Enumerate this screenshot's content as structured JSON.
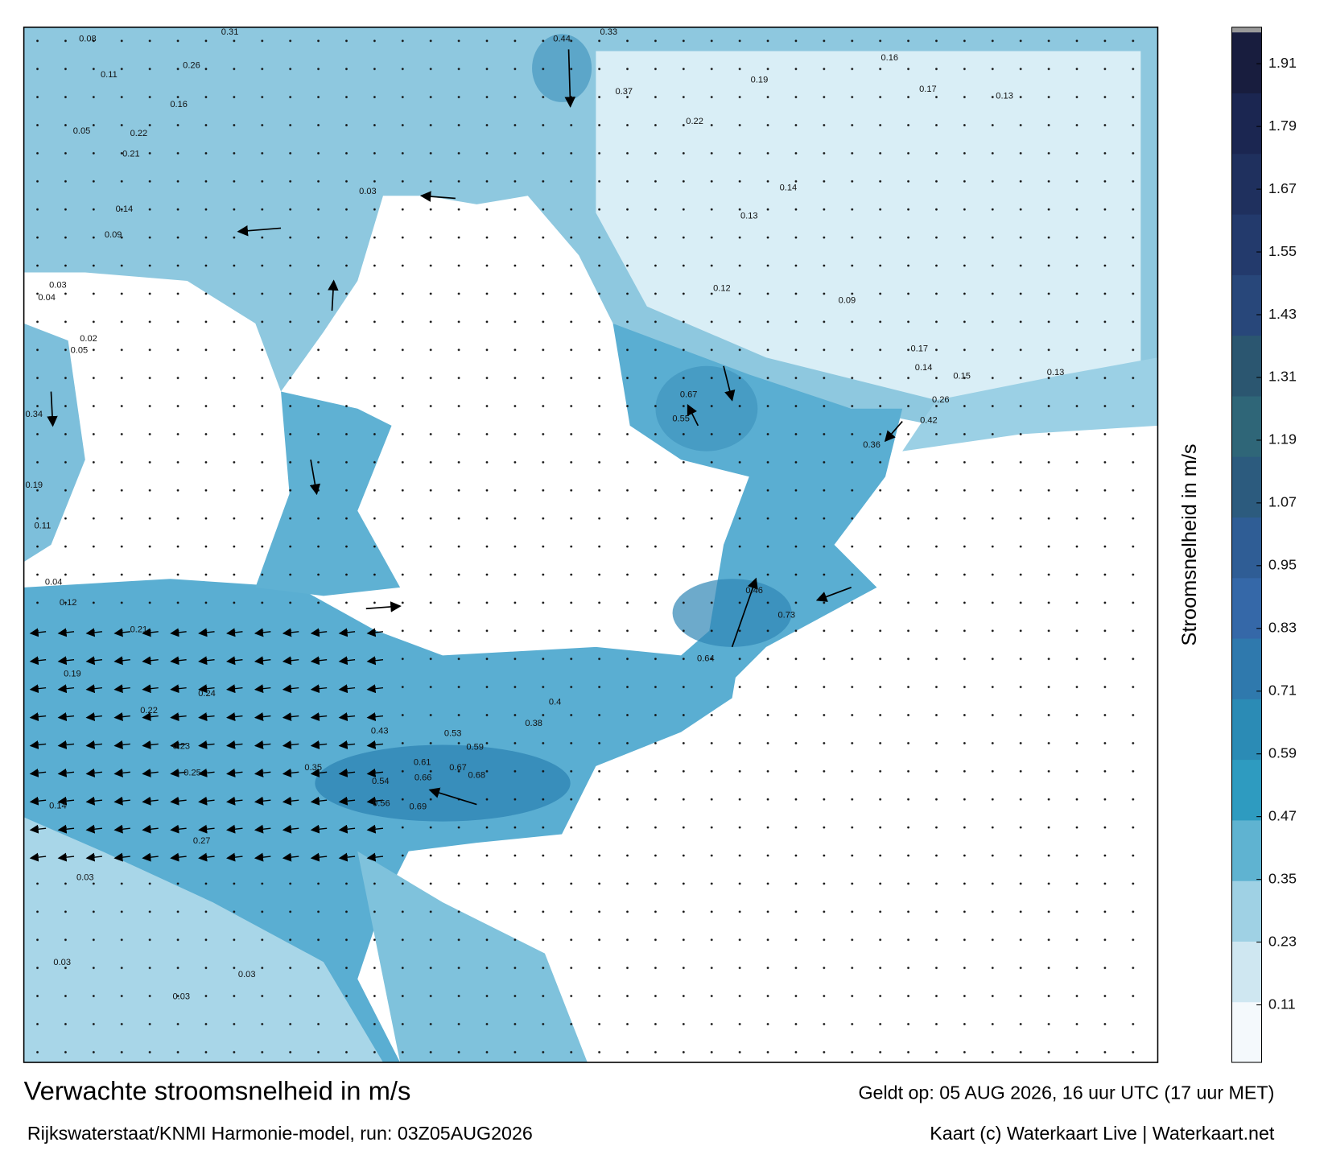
{
  "header": {
    "title": "Verwachte stroomsnelheid in m/s",
    "model": "Rijkswaterstaat/KNMI Harmonie-model, run: 03Z05AUG2026",
    "valid": "Geldt op: 05 AUG 2026, 16 uur UTC (17 uur MET)",
    "credit": "Kaart (c) Waterkaart Live | Waterkaart.net"
  },
  "colorbar": {
    "label": "Stroomsnelheid in m/s",
    "lim": [
      0,
      1.97
    ],
    "ticks": [
      0.11,
      0.23,
      0.35,
      0.47,
      0.59,
      0.71,
      0.83,
      0.95,
      1.07,
      1.19,
      1.31,
      1.43,
      1.55,
      1.67,
      1.79,
      1.91
    ],
    "colors": [
      "#f4f9fc",
      "#cfe7f1",
      "#9fd1e4",
      "#5fb3d1",
      "#2e9bc0",
      "#2b8bb5",
      "#2f79ad",
      "#3568a8",
      "#2f5d95",
      "#2c5b7e",
      "#2f6678",
      "#2b5670",
      "#28477a",
      "#233a6c",
      "#1f305e",
      "#1b2651",
      "#181d3e"
    ]
  },
  "map": {
    "speed_labels": [
      0.08,
      0.31,
      0.11,
      0.26,
      0.16,
      0.05,
      0.22,
      0.21,
      0.03,
      0.14,
      0.09,
      0.03,
      0.04,
      0.02,
      0.05,
      0.34,
      0.19,
      0.11,
      0.04,
      0.12,
      0.21,
      0.19,
      0.24,
      0.22,
      0.23,
      0.25,
      0.14,
      0.27,
      0.03,
      0.03,
      0.03,
      0.03,
      0.44,
      0.33,
      0.37,
      0.22,
      0.19,
      0.16,
      0.17,
      0.13,
      0.14,
      0.13,
      0.12,
      0.09,
      0.14,
      0.15,
      0.13,
      0.26,
      0.42,
      0.36,
      0.67,
      0.55,
      0.46,
      0.73,
      0.64,
      0.53,
      0.59,
      0.61,
      0.67,
      0.66,
      0.68,
      0.54,
      0.69,
      0.56,
      0.43,
      0.4,
      0.38,
      0.35,
      0.17
    ]
  }
}
